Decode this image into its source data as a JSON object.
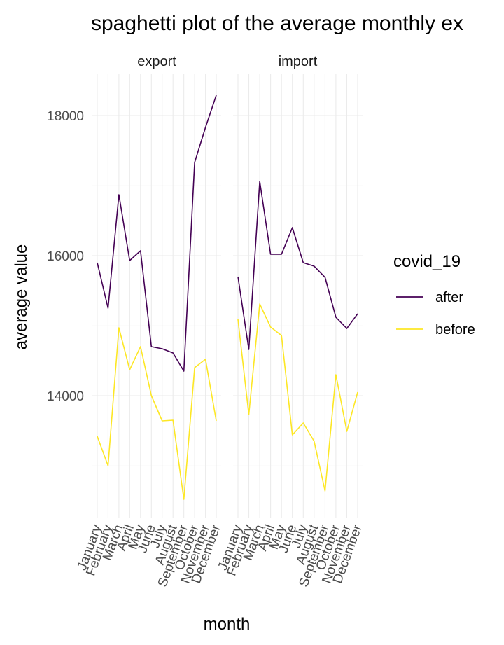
{
  "chart_data": {
    "type": "line",
    "title": "spaghetti plot of the average monthly ex",
    "xlabel": "month",
    "ylabel": "average value",
    "ylim": [
      12250,
      18600
    ],
    "y_ticks": [
      14000,
      16000,
      18000
    ],
    "categories": [
      "January",
      "February",
      "March",
      "April",
      "May",
      "June",
      "July",
      "August",
      "September",
      "October",
      "November",
      "December"
    ],
    "legend": {
      "title": "covid_19",
      "position": "right"
    },
    "colors": {
      "after": "#440154",
      "before": "#FDE725"
    },
    "panels": [
      {
        "name": "export",
        "series": [
          {
            "name": "after",
            "values": [
              15900,
              15250,
              16870,
              15930,
              16070,
              14700,
              14670,
              14610,
              14350,
              17330,
              17830,
              18290
            ]
          },
          {
            "name": "before",
            "values": [
              13420,
              13000,
              14970,
              14370,
              14700,
              14000,
              13640,
              13650,
              12520,
              14400,
              14520,
              13640
            ]
          }
        ]
      },
      {
        "name": "import",
        "series": [
          {
            "name": "after",
            "values": [
              15700,
              14660,
              17060,
              16020,
              16020,
              16400,
              15900,
              15850,
              15690,
              15120,
              14960,
              15170
            ]
          },
          {
            "name": "before",
            "values": [
              15090,
              13730,
              15310,
              14980,
              14860,
              13440,
              13610,
              13350,
              12640,
              14300,
              13490,
              14050
            ]
          }
        ]
      }
    ]
  }
}
